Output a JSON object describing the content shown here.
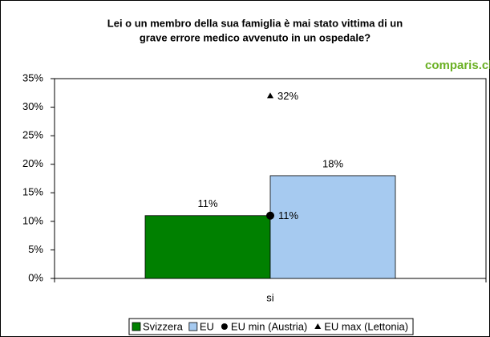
{
  "chart_data": {
    "type": "bar",
    "title": [
      "Lei o un membro della sua famiglia è mai stato vittima di un",
      "grave errore medico avvenuto in un ospedale?"
    ],
    "watermark": "comparis.ch",
    "categories": [
      "si"
    ],
    "series": [
      {
        "name": "Svizzera",
        "kind": "bar",
        "color": "#008000",
        "values": [
          11
        ],
        "value_labels": [
          "11%"
        ]
      },
      {
        "name": "EU",
        "kind": "bar",
        "color": "#a6caf0",
        "values": [
          18
        ],
        "value_labels": [
          "18%"
        ]
      },
      {
        "name": "EU min (Austria)",
        "kind": "circle",
        "color": "#000000",
        "values": [
          11
        ],
        "value_labels": [
          "11%"
        ]
      },
      {
        "name": "EU max (Lettonia)",
        "kind": "triangle",
        "color": "#000000",
        "values": [
          32
        ],
        "value_labels": [
          "32%"
        ]
      }
    ],
    "ylim": [
      0,
      35
    ],
    "yticks": [
      {
        "value": 0,
        "label": "0%"
      },
      {
        "value": 5,
        "label": "5%"
      },
      {
        "value": 10,
        "label": "10%"
      },
      {
        "value": 15,
        "label": "15%"
      },
      {
        "value": 20,
        "label": "20%"
      },
      {
        "value": 25,
        "label": "25%"
      },
      {
        "value": 30,
        "label": "30%"
      },
      {
        "value": 35,
        "label": "35%"
      }
    ],
    "grid": false,
    "legend": "bottom"
  }
}
